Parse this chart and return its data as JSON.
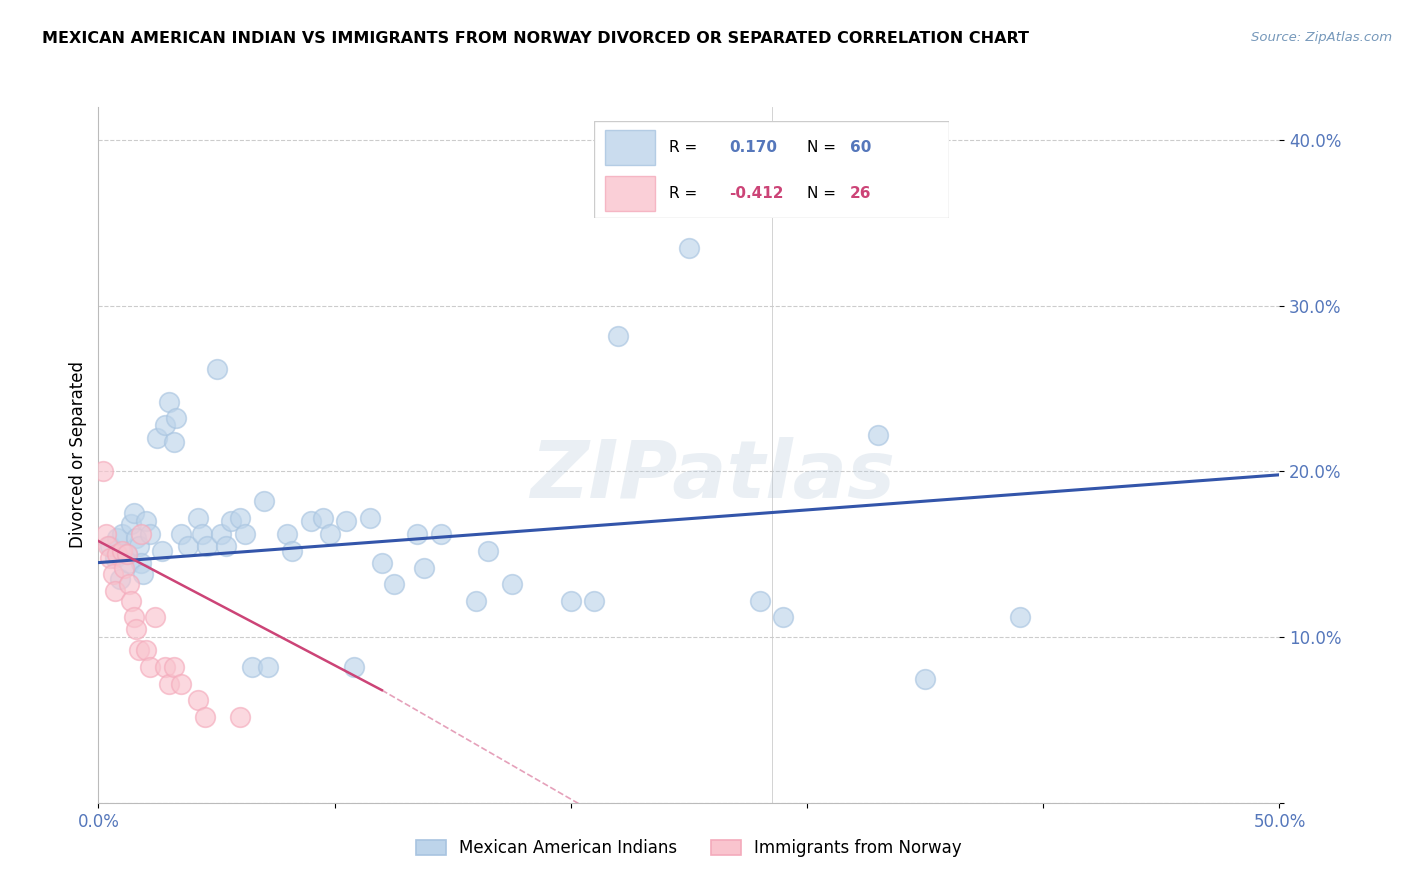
{
  "title": "MEXICAN AMERICAN INDIAN VS IMMIGRANTS FROM NORWAY DIVORCED OR SEPARATED CORRELATION CHART",
  "source": "Source: ZipAtlas.com",
  "ylabel": "Divorced or Separated",
  "xlim": [
    0.0,
    0.5
  ],
  "ylim": [
    0.0,
    0.42
  ],
  "xticks": [
    0.0,
    0.1,
    0.2,
    0.3,
    0.4,
    0.5
  ],
  "yticks": [
    0.0,
    0.1,
    0.2,
    0.3,
    0.4
  ],
  "xtick_labels": [
    "0.0%",
    "",
    "",
    "",
    "",
    "50.0%"
  ],
  "ytick_labels": [
    "",
    "10.0%",
    "20.0%",
    "30.0%",
    "40.0%"
  ],
  "legend_blue_r_val": "0.170",
  "legend_blue_n_val": "60",
  "legend_pink_r_val": "-0.412",
  "legend_pink_n_val": "26",
  "legend1_label": "Mexican American Indians",
  "legend2_label": "Immigrants from Norway",
  "blue_color": "#A8C4E0",
  "pink_color": "#F4AABB",
  "blue_fill_color": "#BDD4EA",
  "pink_fill_color": "#F9C4CE",
  "line_blue_color": "#3355AA",
  "line_pink_color": "#CC4477",
  "tick_color": "#5577BB",
  "watermark": "ZIPatlas",
  "blue_scatter": [
    [
      0.005,
      0.155
    ],
    [
      0.007,
      0.148
    ],
    [
      0.008,
      0.16
    ],
    [
      0.009,
      0.135
    ],
    [
      0.01,
      0.162
    ],
    [
      0.012,
      0.15
    ],
    [
      0.013,
      0.145
    ],
    [
      0.014,
      0.168
    ],
    [
      0.015,
      0.175
    ],
    [
      0.016,
      0.16
    ],
    [
      0.017,
      0.155
    ],
    [
      0.018,
      0.145
    ],
    [
      0.019,
      0.138
    ],
    [
      0.02,
      0.17
    ],
    [
      0.022,
      0.162
    ],
    [
      0.025,
      0.22
    ],
    [
      0.027,
      0.152
    ],
    [
      0.028,
      0.228
    ],
    [
      0.03,
      0.242
    ],
    [
      0.032,
      0.218
    ],
    [
      0.033,
      0.232
    ],
    [
      0.035,
      0.162
    ],
    [
      0.038,
      0.155
    ],
    [
      0.042,
      0.172
    ],
    [
      0.044,
      0.162
    ],
    [
      0.046,
      0.155
    ],
    [
      0.05,
      0.262
    ],
    [
      0.052,
      0.162
    ],
    [
      0.054,
      0.155
    ],
    [
      0.056,
      0.17
    ],
    [
      0.06,
      0.172
    ],
    [
      0.062,
      0.162
    ],
    [
      0.065,
      0.082
    ],
    [
      0.07,
      0.182
    ],
    [
      0.072,
      0.082
    ],
    [
      0.08,
      0.162
    ],
    [
      0.082,
      0.152
    ],
    [
      0.09,
      0.17
    ],
    [
      0.095,
      0.172
    ],
    [
      0.098,
      0.162
    ],
    [
      0.105,
      0.17
    ],
    [
      0.108,
      0.082
    ],
    [
      0.115,
      0.172
    ],
    [
      0.12,
      0.145
    ],
    [
      0.125,
      0.132
    ],
    [
      0.135,
      0.162
    ],
    [
      0.138,
      0.142
    ],
    [
      0.145,
      0.162
    ],
    [
      0.16,
      0.122
    ],
    [
      0.165,
      0.152
    ],
    [
      0.175,
      0.132
    ],
    [
      0.2,
      0.122
    ],
    [
      0.21,
      0.122
    ],
    [
      0.22,
      0.282
    ],
    [
      0.25,
      0.335
    ],
    [
      0.28,
      0.122
    ],
    [
      0.29,
      0.112
    ],
    [
      0.33,
      0.222
    ],
    [
      0.35,
      0.075
    ],
    [
      0.39,
      0.112
    ]
  ],
  "pink_scatter": [
    [
      0.002,
      0.2
    ],
    [
      0.003,
      0.162
    ],
    [
      0.004,
      0.155
    ],
    [
      0.005,
      0.148
    ],
    [
      0.006,
      0.138
    ],
    [
      0.007,
      0.128
    ],
    [
      0.008,
      0.15
    ],
    [
      0.01,
      0.152
    ],
    [
      0.011,
      0.142
    ],
    [
      0.012,
      0.15
    ],
    [
      0.013,
      0.132
    ],
    [
      0.014,
      0.122
    ],
    [
      0.015,
      0.112
    ],
    [
      0.016,
      0.105
    ],
    [
      0.017,
      0.092
    ],
    [
      0.018,
      0.162
    ],
    [
      0.02,
      0.092
    ],
    [
      0.022,
      0.082
    ],
    [
      0.024,
      0.112
    ],
    [
      0.028,
      0.082
    ],
    [
      0.03,
      0.072
    ],
    [
      0.032,
      0.082
    ],
    [
      0.035,
      0.072
    ],
    [
      0.042,
      0.062
    ],
    [
      0.045,
      0.052
    ],
    [
      0.06,
      0.052
    ]
  ],
  "blue_line_x": [
    0.0,
    0.5
  ],
  "blue_line_y": [
    0.145,
    0.198
  ],
  "pink_line_x": [
    0.0,
    0.12
  ],
  "pink_line_y": [
    0.158,
    0.068
  ]
}
